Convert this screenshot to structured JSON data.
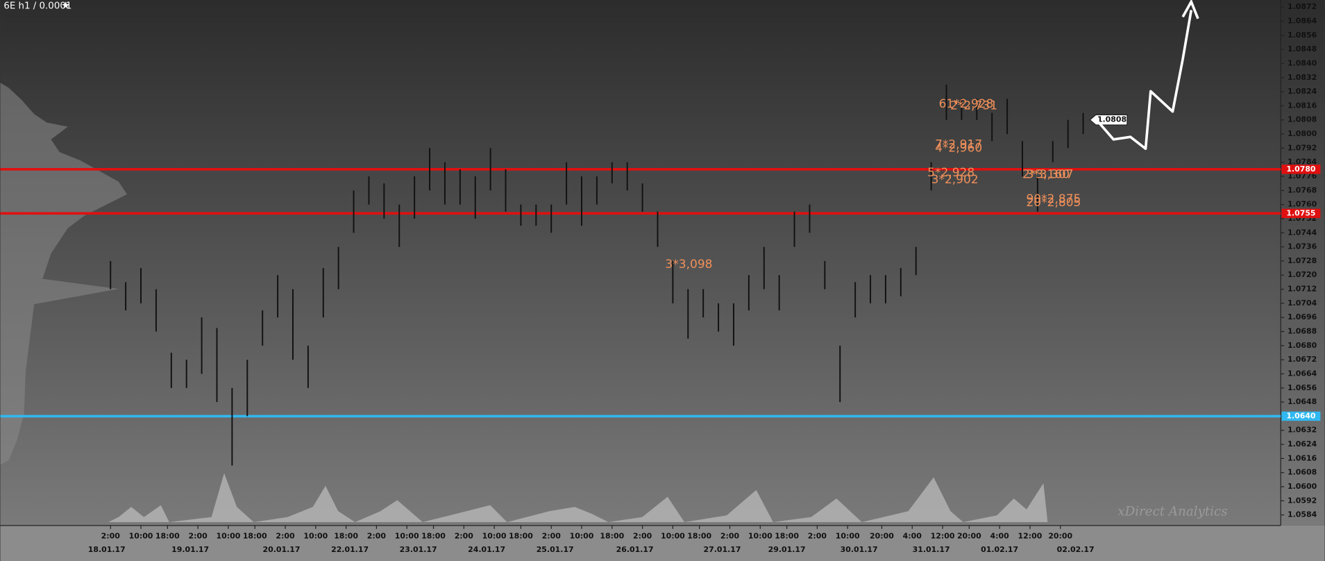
{
  "chart_data": {
    "type": "ohlc",
    "title": "6E h1 / 0.0001",
    "watermark": "xDirect Analytics",
    "bar_color": "#111111",
    "ylim": [
      1.0578,
      1.0876
    ],
    "yticks": [
      1.0584,
      1.0592,
      {
        "value": 1.06,
        "label": "1.0600"
      },
      1.0608,
      1.0616,
      1.0624,
      1.0632,
      {
        "value": 1.064,
        "label": "1.0640"
      },
      1.0648,
      1.0656,
      1.0664,
      1.0672,
      {
        "value": 1.068,
        "label": "1.0680"
      },
      1.0688,
      1.0696,
      1.0704,
      1.0712,
      {
        "value": 1.072,
        "label": "1.0720"
      },
      1.0728,
      1.0736,
      1.0744,
      1.0752,
      {
        "value": 1.076,
        "label": "1.0760"
      },
      1.0768,
      1.0776,
      1.0784,
      1.0792,
      {
        "value": 1.08,
        "label": "1.0800"
      },
      1.0808,
      1.0816,
      1.0824,
      1.0832,
      {
        "value": 1.084,
        "label": "1.0840"
      },
      1.0848,
      1.0856,
      1.0864,
      1.0872
    ],
    "xlim": [
      -29,
      308
    ],
    "xticks": [
      {
        "value": 0,
        "label": "2:00"
      },
      {
        "value": 8,
        "label": "10:00"
      },
      {
        "value": 15,
        "label": "18:00"
      },
      {
        "value": 23,
        "label": "2:00"
      },
      {
        "value": 31,
        "label": "10:00"
      },
      {
        "value": 38,
        "label": "18:00"
      },
      {
        "value": 46,
        "label": "2:00"
      },
      {
        "value": 54,
        "label": "10:00"
      },
      {
        "value": 62,
        "label": "18:00"
      },
      {
        "value": 70,
        "label": "2:00"
      },
      {
        "value": 78,
        "label": "10:00"
      },
      {
        "value": 85,
        "label": "18:00"
      },
      {
        "value": 93,
        "label": "2:00"
      },
      {
        "value": 101,
        "label": "10:00"
      },
      {
        "value": 108,
        "label": "18:00"
      },
      {
        "value": 116,
        "label": "2:00"
      },
      {
        "value": 124,
        "label": "10:00"
      },
      {
        "value": 132,
        "label": "18:00"
      },
      {
        "value": 140,
        "label": "2:00"
      },
      {
        "value": 148,
        "label": "10:00"
      },
      {
        "value": 155,
        "label": "18:00"
      },
      {
        "value": 163,
        "label": "2:00"
      },
      {
        "value": 171,
        "label": "10:00"
      },
      {
        "value": 178,
        "label": "18:00"
      },
      {
        "value": 186,
        "label": "2:00"
      },
      {
        "value": 194,
        "label": "10:00"
      },
      {
        "value": 203,
        "label": "20:00"
      },
      {
        "value": 211,
        "label": "4:00"
      },
      {
        "value": 219,
        "label": "12:00"
      },
      {
        "value": 226,
        "label": "20:00"
      },
      {
        "value": 234,
        "label": "4:00"
      },
      {
        "value": 242,
        "label": "12:00"
      },
      {
        "value": 250,
        "label": "20:00"
      }
    ],
    "xdates": [
      {
        "value": -1,
        "label": "18.01.17"
      },
      {
        "value": 21,
        "label": "19.01.17"
      },
      {
        "value": 45,
        "label": "20.01.17"
      },
      {
        "value": 63,
        "label": "22.01.17"
      },
      {
        "value": 81,
        "label": "23.01.17"
      },
      {
        "value": 99,
        "label": "24.01.17"
      },
      {
        "value": 117,
        "label": "25.01.17"
      },
      {
        "value": 138,
        "label": "26.01.17"
      },
      {
        "value": 161,
        "label": "27.01.17"
      },
      {
        "value": 178,
        "label": "29.01.17"
      },
      {
        "value": 197,
        "label": "30.01.17"
      },
      {
        "value": 216,
        "label": "31.01.17"
      },
      {
        "value": 234,
        "label": "01.02.17"
      },
      {
        "value": 254,
        "label": "02.02.17"
      }
    ],
    "x": [
      0,
      4,
      8,
      12,
      16,
      20,
      24,
      28,
      32,
      36,
      40,
      44,
      48,
      52,
      56,
      60,
      64,
      68,
      72,
      76,
      80,
      84,
      88,
      92,
      96,
      100,
      104,
      108,
      112,
      116,
      120,
      124,
      128,
      132,
      136,
      140,
      144,
      148,
      152,
      156,
      160,
      164,
      168,
      172,
      176,
      180,
      184,
      188,
      192,
      196,
      200,
      204,
      208,
      212,
      216,
      220,
      224,
      228,
      232,
      236,
      240,
      244,
      248,
      252,
      256
    ],
    "low": [
      1.0712,
      1.07,
      1.0704,
      1.0688,
      1.0656,
      1.0656,
      1.0664,
      1.0648,
      1.0612,
      1.064,
      1.068,
      1.0696,
      1.0672,
      1.0656,
      1.0696,
      1.0712,
      1.0744,
      1.076,
      1.0752,
      1.0736,
      1.0752,
      1.0768,
      1.076,
      1.076,
      1.0752,
      1.0768,
      1.0756,
      1.0748,
      1.0748,
      1.0744,
      1.076,
      1.0748,
      1.076,
      1.0772,
      1.0768,
      1.0756,
      1.0736,
      1.0704,
      1.0684,
      1.0696,
      1.0688,
      1.068,
      1.07,
      1.0712,
      1.07,
      1.0736,
      1.0744,
      1.0712,
      1.0648,
      1.0696,
      1.0704,
      1.0704,
      1.0708,
      1.072,
      1.0768,
      1.0808,
      1.0808,
      1.0808,
      1.0796,
      1.08,
      1.0776,
      1.0756,
      1.0784,
      1.0792,
      1.08
    ],
    "high": [
      1.0728,
      1.0716,
      1.0724,
      1.0712,
      1.0676,
      1.0672,
      1.0696,
      1.069,
      1.0656,
      1.0672,
      1.07,
      1.072,
      1.0712,
      1.068,
      1.0724,
      1.0736,
      1.0768,
      1.0776,
      1.0772,
      1.076,
      1.0776,
      1.0792,
      1.0784,
      1.078,
      1.0776,
      1.0792,
      1.078,
      1.076,
      1.076,
      1.076,
      1.0784,
      1.0776,
      1.0776,
      1.0784,
      1.0784,
      1.0772,
      1.0756,
      1.0728,
      1.0712,
      1.0712,
      1.0704,
      1.0704,
      1.072,
      1.0736,
      1.072,
      1.0756,
      1.076,
      1.0728,
      1.068,
      1.0716,
      1.072,
      1.072,
      1.0724,
      1.0736,
      1.0784,
      1.0828,
      1.082,
      1.082,
      1.0812,
      1.082,
      1.0796,
      1.0776,
      1.0796,
      1.0808,
      1.0812
    ],
    "levels": [
      {
        "value": 1.078,
        "label": "1.0780",
        "color": "#e01010"
      },
      {
        "value": 1.0755,
        "label": "1.0755",
        "color": "#e01010"
      },
      {
        "value": 1.064,
        "label": "1.0640",
        "color": "#30b8f0"
      }
    ],
    "last_price": 1.0808,
    "annotations": [
      {
        "text": "3*3,098",
        "x": 146,
        "y": 1.0726
      },
      {
        "text": "5*2,928",
        "x": 215,
        "y": 1.0778
      },
      {
        "text": "3*2,902",
        "x": 216,
        "y": 1.0774
      },
      {
        "text": "7*2,917",
        "x": 217,
        "y": 1.0794
      },
      {
        "text": "4*2,960",
        "x": 217,
        "y": 1.0792
      },
      {
        "text": "61*2,928",
        "x": 218,
        "y": 1.0817
      },
      {
        "text": "2*2,731",
        "x": 221,
        "y": 1.0816
      },
      {
        "text": "2*3,160",
        "x": 240,
        "y": 1.0777
      },
      {
        "text": "3*3,307",
        "x": 241,
        "y": 1.0777
      },
      {
        "text": "90*2,875",
        "x": 241,
        "y": 1.0763
      },
      {
        "text": "20*2,805",
        "x": 241,
        "y": 1.0761
      }
    ]
  }
}
